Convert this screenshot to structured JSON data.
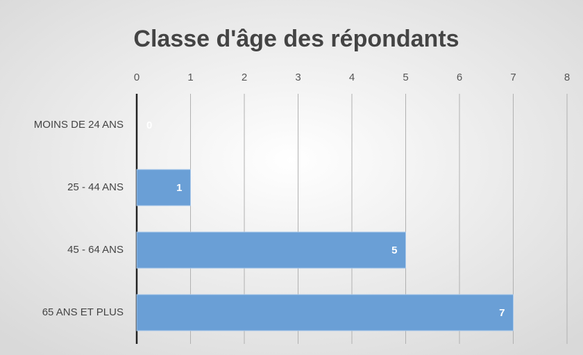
{
  "chart_data": {
    "type": "bar",
    "orientation": "horizontal",
    "title": "Classe d'âge des répondants",
    "categories": [
      "MOINS DE 24 ANS",
      "25 - 44 ANS",
      "45 - 64 ANS",
      "65 ANS ET PLUS"
    ],
    "values": [
      0,
      1,
      5,
      7
    ],
    "color": "#6a9fd6",
    "xlim": [
      0,
      8
    ],
    "xticks": [
      0,
      1,
      2,
      3,
      4,
      5,
      6,
      7,
      8
    ],
    "grid": true
  }
}
